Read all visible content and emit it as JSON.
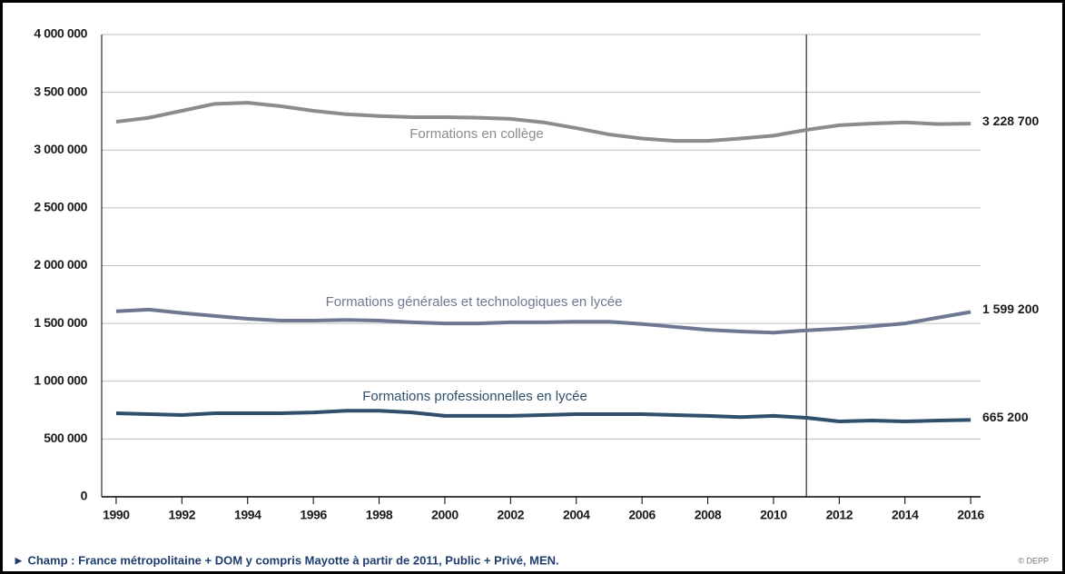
{
  "chart_data": {
    "type": "line",
    "x": [
      1990,
      1991,
      1992,
      1993,
      1994,
      1995,
      1996,
      1997,
      1998,
      1999,
      2000,
      2001,
      2002,
      2003,
      2004,
      2005,
      2006,
      2007,
      2008,
      2009,
      2010,
      2011,
      2012,
      2013,
      2014,
      2015,
      2016
    ],
    "series": [
      {
        "name": "Formations en collège",
        "color": "#8c8c8c",
        "values": [
          3245000,
          3280000,
          3340000,
          3400000,
          3410000,
          3380000,
          3340000,
          3310000,
          3295000,
          3285000,
          3285000,
          3280000,
          3270000,
          3240000,
          3190000,
          3135000,
          3100000,
          3080000,
          3080000,
          3100000,
          3125000,
          3175000,
          3215000,
          3230000,
          3240000,
          3225000,
          3228700
        ],
        "value_labels": [
          null,
          null,
          null,
          null,
          null,
          null,
          null,
          null,
          null,
          null,
          null,
          null,
          null,
          null,
          null,
          null,
          null,
          null,
          null,
          null,
          null,
          null,
          null,
          null,
          null,
          null,
          "3 228 700"
        ]
      },
      {
        "name": "Formations générales et technologiques en lycée",
        "color": "#6e7892",
        "values": [
          1605000,
          1620000,
          1590000,
          1565000,
          1540000,
          1525000,
          1525000,
          1530000,
          1525000,
          1510000,
          1500000,
          1500000,
          1510000,
          1510000,
          1515000,
          1515000,
          1495000,
          1470000,
          1445000,
          1430000,
          1420000,
          1440000,
          1455000,
          1475000,
          1500000,
          1550000,
          1599200
        ],
        "value_labels": [
          null,
          null,
          null,
          null,
          null,
          null,
          null,
          null,
          null,
          null,
          null,
          null,
          null,
          null,
          null,
          null,
          null,
          null,
          null,
          null,
          null,
          null,
          null,
          null,
          null,
          null,
          "1 599 200"
        ]
      },
      {
        "name": "Formations professionnelles en lycée",
        "color": "#2f4f6d",
        "values": [
          723000,
          715000,
          707000,
          723000,
          723000,
          723000,
          730000,
          745000,
          745000,
          730000,
          700000,
          700000,
          700000,
          707000,
          715000,
          715000,
          715000,
          707000,
          700000,
          690000,
          700000,
          684000,
          652000,
          660000,
          652000,
          660000,
          665200
        ],
        "value_labels": [
          null,
          null,
          null,
          null,
          null,
          null,
          null,
          null,
          null,
          null,
          null,
          null,
          null,
          null,
          null,
          null,
          null,
          null,
          null,
          null,
          null,
          null,
          null,
          null,
          null,
          null,
          "665 200"
        ]
      }
    ],
    "xlim": [
      1989.56,
      2016.3
    ],
    "xticks": [
      1990,
      1992,
      1994,
      1996,
      1998,
      2000,
      2002,
      2004,
      2006,
      2008,
      2010,
      2012,
      2014,
      2016
    ],
    "ylim": [
      0,
      4000000
    ],
    "yticks": [
      0,
      {
        "value": 500000,
        "label": "500 000"
      },
      {
        "value": 1000000,
        "label": "1 000 000"
      },
      {
        "value": 1500000,
        "label": "1 500 000"
      },
      {
        "value": 2000000,
        "label": "2 000 000"
      },
      {
        "value": 2500000,
        "label": "2 500 000"
      },
      {
        "value": 3000000,
        "label": "3 000 000"
      },
      {
        "value": 3500000,
        "label": "3 500 000"
      },
      {
        "value": 4000000,
        "label": "4 000 000"
      }
    ],
    "grid": true,
    "vline": 2011,
    "footnote": "► Champ : France métropolitaine + DOM y compris Mayotte à partir de 2011, Public + Privé, MEN.",
    "source": "© DEPP"
  }
}
